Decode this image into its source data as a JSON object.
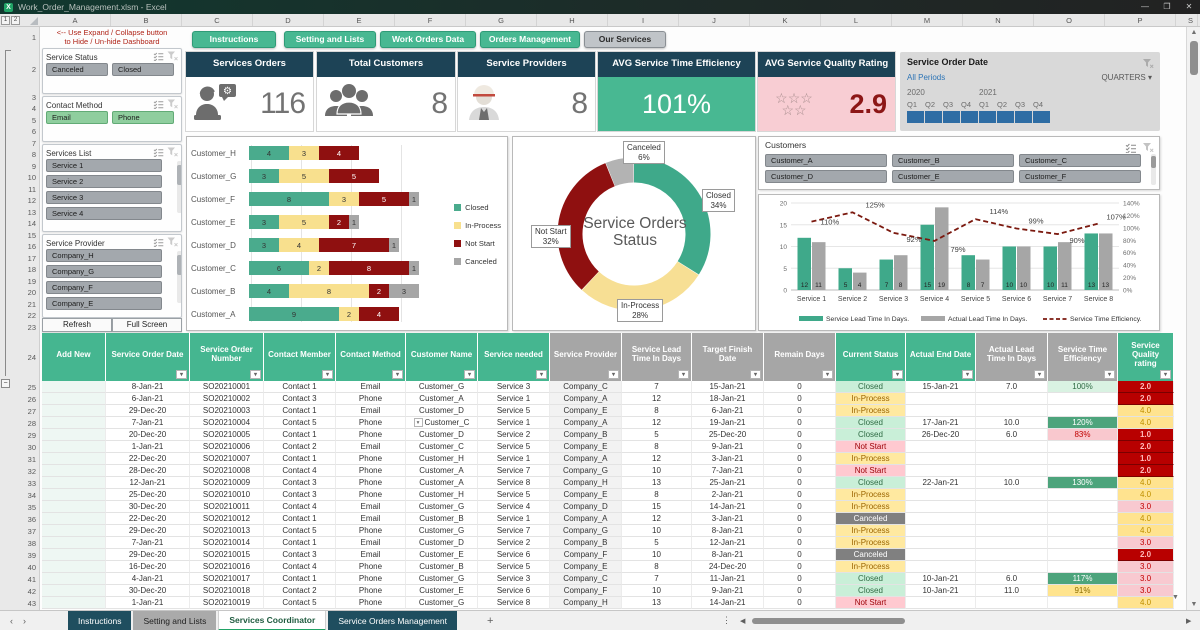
{
  "window": {
    "title": "Work_Order_Management.xlsm - Excel"
  },
  "grid": {
    "outline_levels": [
      "1",
      "2"
    ],
    "column_letters": [
      "A",
      "B",
      "C",
      "D",
      "E",
      "F",
      "G",
      "H",
      "I",
      "J",
      "K",
      "L",
      "M",
      "N",
      "O",
      "P",
      "S"
    ],
    "dashboard_row_numbers": [
      "1",
      "2",
      "3",
      "4",
      "5",
      "6",
      "7",
      "8",
      "9",
      "10",
      "11",
      "12",
      "13",
      "14",
      "15",
      "16",
      "17",
      "18",
      "19",
      "20",
      "21",
      "22",
      "23"
    ],
    "table_row_numbers": [
      "24",
      "25",
      "26",
      "27",
      "28",
      "29",
      "30",
      "31",
      "32",
      "33",
      "34",
      "35",
      "36",
      "37",
      "38",
      "39",
      "40",
      "41",
      "42",
      "43"
    ]
  },
  "sidebar": {
    "note_line1": "<-- Use Expand / Collapse button",
    "note_line2": "to Hide / Un-hide Dashboard",
    "slicers": [
      {
        "title": "Service Status",
        "columns": 2,
        "items": [
          {
            "label": "Canceled",
            "color": "gray"
          },
          {
            "label": "Closed",
            "color": "gray"
          }
        ]
      },
      {
        "title": "Contact Method",
        "columns": 2,
        "items": [
          {
            "label": "Email",
            "color": "green"
          },
          {
            "label": "Phone",
            "color": "green"
          }
        ]
      },
      {
        "title": "Services List",
        "columns": 1,
        "scrollbar": true,
        "items": [
          {
            "label": "Service 1",
            "color": "gray"
          },
          {
            "label": "Service 2",
            "color": "gray"
          },
          {
            "label": "Service 3",
            "color": "gray"
          },
          {
            "label": "Service 4",
            "color": "gray"
          }
        ]
      },
      {
        "title": "Service Provider",
        "columns": 1,
        "scrollbar": true,
        "items": [
          {
            "label": "Company_H",
            "color": "gray"
          },
          {
            "label": "Company_G",
            "color": "gray"
          },
          {
            "label": "Company_F",
            "color": "gray"
          },
          {
            "label": "Company_E",
            "color": "gray"
          }
        ]
      }
    ],
    "refresh_label": "Refresh",
    "fullscreen_label": "Full Screen"
  },
  "nav_buttons": [
    {
      "label": "Instructions",
      "style": "green"
    },
    {
      "label": "Setting and Lists",
      "style": "green"
    },
    {
      "label": "Work Orders Data",
      "style": "green"
    },
    {
      "label": "Orders Management",
      "style": "green"
    },
    {
      "label": "Our Services",
      "style": "gray"
    }
  ],
  "kpis": {
    "orders": {
      "title": "Services Orders",
      "value": "116"
    },
    "customers": {
      "title": "Total Customers",
      "value": "8"
    },
    "providers": {
      "title": "Service Providers",
      "value": "8"
    },
    "efficiency": {
      "title": "AVG Service Time Efficiency",
      "value": "101%"
    },
    "quality": {
      "title": "AVG Service Quality Rating",
      "value": "2.9",
      "star_count": 5,
      "star_glyph": "☆"
    }
  },
  "timeline": {
    "title": "Service Order Date",
    "selection": "All Periods",
    "granularity": "QUARTERS",
    "groups": [
      {
        "year": "2020",
        "quarters": [
          "Q1",
          "Q2",
          "Q3",
          "Q4"
        ]
      },
      {
        "year": "2021",
        "quarters": [
          "Q1",
          "Q2",
          "Q3",
          "Q4"
        ]
      }
    ]
  },
  "customers_slicer": {
    "title": "Customers",
    "items": [
      "Customer_A",
      "Customer_B",
      "Customer_C",
      "Customer_D",
      "Customer_E",
      "Customer_F"
    ]
  },
  "chart_data": [
    {
      "id": "orders-by-customer",
      "type": "bar",
      "orientation": "horizontal",
      "stacked": true,
      "categories": [
        "Customer_H",
        "Customer_G",
        "Customer_F",
        "Customer_E",
        "Customer_D",
        "Customer_C",
        "Customer_B",
        "Customer_A"
      ],
      "series": [
        {
          "name": "Closed",
          "color": "#4aab8d",
          "values": [
            4,
            3,
            8,
            3,
            3,
            6,
            4,
            9
          ]
        },
        {
          "name": "In-Process",
          "color": "#f8e08e",
          "values": [
            3,
            5,
            3,
            5,
            4,
            2,
            8,
            2
          ]
        },
        {
          "name": "Not Start",
          "color": "#8f1010",
          "values": [
            4,
            5,
            5,
            2,
            7,
            8,
            2,
            4
          ]
        },
        {
          "name": "Canceled",
          "color": "#a6a6a6",
          "values": [
            0,
            0,
            1,
            1,
            1,
            1,
            3,
            0
          ]
        }
      ],
      "xlim": [
        0,
        18
      ],
      "grid": true,
      "legend_position": "right"
    },
    {
      "id": "service-orders-status",
      "type": "pie",
      "donut": true,
      "title": "Service Orders Status",
      "labels": [
        "Closed",
        "In-Process",
        "Not Start",
        "Canceled"
      ],
      "values": [
        34,
        28,
        32,
        6
      ],
      "colors": [
        "#3fa98a",
        "#f7df94",
        "#8f1010",
        "#b3b3b3"
      ],
      "label_texts": [
        "Closed|34%",
        "In-Process|28%",
        "Not Start|32%",
        "Canceled|6%"
      ]
    },
    {
      "id": "service-lead-times",
      "type": "bar+line",
      "categories": [
        "Service 1",
        "Service 2",
        "Service 3",
        "Service 4",
        "Service 5",
        "Service 6",
        "Service 7",
        "Service 8"
      ],
      "series": [
        {
          "name": "Service Lead Time In Days.",
          "type": "bar",
          "color": "#3fa98a",
          "values": [
            12,
            5,
            7,
            15,
            8,
            10,
            10,
            13
          ]
        },
        {
          "name": "Actual Lead Time In Days.",
          "type": "bar",
          "color": "#a6a6a6",
          "values": [
            11,
            4,
            8,
            19,
            7,
            10,
            11,
            13
          ]
        },
        {
          "name": "Service Time Efficiency.",
          "type": "line",
          "style": "dashed",
          "color": "#7b190f",
          "values_pct": [
            110,
            125,
            92,
            79,
            114,
            99,
            90,
            107
          ]
        }
      ],
      "ylim_left": [
        0,
        20
      ],
      "yticks_left": [
        "0",
        "5",
        "10",
        "15",
        "20"
      ],
      "ylim_right_pct": [
        0,
        140
      ],
      "yticks_right": [
        "0%",
        "20%",
        "40%",
        "60%",
        "80%",
        "100%",
        "120%",
        "140%"
      ],
      "legend_position": "bottom"
    }
  ],
  "table": {
    "headers": [
      {
        "label": "Add New",
        "style": "green"
      },
      {
        "label": "Service Order Date",
        "style": "green"
      },
      {
        "label": "Service Order Number",
        "style": "green"
      },
      {
        "label": "Contact Member",
        "style": "green"
      },
      {
        "label": "Contact Method",
        "style": "green"
      },
      {
        "label": "Customer Name",
        "style": "green"
      },
      {
        "label": "Service needed",
        "style": "green"
      },
      {
        "label": "Service Provider",
        "style": "gray"
      },
      {
        "label": "Service Lead Time In Days",
        "style": "gray"
      },
      {
        "label": "Target Finish Date",
        "style": "gray"
      },
      {
        "label": "Remain Days",
        "style": "gray"
      },
      {
        "label": "Current Status",
        "style": "green"
      },
      {
        "label": "Actual End Date",
        "style": "green"
      },
      {
        "label": "Actual Lead Time In Days",
        "style": "gray"
      },
      {
        "label": "Service Time Efficiency",
        "style": "gray"
      },
      {
        "label": "Service Quality rating",
        "style": "green"
      }
    ],
    "rows": [
      {
        "date": "8-Jan-21",
        "number": "SO20210001",
        "contact": "Contact 1",
        "method": "Email",
        "customer": "Customer_G",
        "service": "Service 3",
        "provider": "Company_C",
        "lead": "7",
        "target": "15-Jan-21",
        "remain": "0",
        "status": "Closed",
        "end": "15-Jan-21",
        "actual_lead": "7.0",
        "efficiency": "100%",
        "eff_style": "light",
        "rating": "2.0"
      },
      {
        "date": "6-Jan-21",
        "number": "SO20210002",
        "contact": "Contact 3",
        "method": "Phone",
        "customer": "Customer_A",
        "service": "Service 1",
        "provider": "Company_A",
        "lead": "12",
        "target": "18-Jan-21",
        "remain": "0",
        "status": "In-Process",
        "end": "",
        "actual_lead": "",
        "efficiency": "",
        "rating": "2.0"
      },
      {
        "date": "29-Dec-20",
        "number": "SO20210003",
        "contact": "Contact 1",
        "method": "Email",
        "customer": "Customer_D",
        "service": "Service 5",
        "provider": "Company_E",
        "lead": "8",
        "target": "6-Jan-21",
        "remain": "0",
        "status": "In-Process",
        "end": "",
        "actual_lead": "",
        "efficiency": "",
        "rating": "4.0"
      },
      {
        "date": "7-Jan-21",
        "number": "SO20210004",
        "contact": "Contact 5",
        "method": "Phone",
        "customer": "Customer_C",
        "dropdown": true,
        "service": "Service 1",
        "provider": "Company_A",
        "lead": "12",
        "target": "19-Jan-21",
        "remain": "0",
        "status": "Closed",
        "end": "17-Jan-21",
        "actual_lead": "10.0",
        "efficiency": "120%",
        "eff_style": "solid",
        "rating": "4.0"
      },
      {
        "date": "20-Dec-20",
        "number": "SO20210005",
        "contact": "Contact 1",
        "method": "Phone",
        "customer": "Customer_D",
        "service": "Service 2",
        "provider": "Company_B",
        "lead": "5",
        "target": "25-Dec-20",
        "remain": "0",
        "status": "Closed",
        "end": "26-Dec-20",
        "actual_lead": "6.0",
        "efficiency": "83%",
        "eff_style": "pink",
        "rating": "1.0"
      },
      {
        "date": "1-Jan-21",
        "number": "SO20210006",
        "contact": "Contact 2",
        "method": "Email",
        "customer": "Customer_C",
        "service": "Service 5",
        "provider": "Company_E",
        "lead": "8",
        "target": "9-Jan-21",
        "remain": "0",
        "status": "Not Start",
        "end": "",
        "actual_lead": "",
        "efficiency": "",
        "rating": "2.0"
      },
      {
        "date": "22-Dec-20",
        "number": "SO20210007",
        "contact": "Contact 1",
        "method": "Phone",
        "customer": "Customer_H",
        "service": "Service 1",
        "provider": "Company_A",
        "lead": "12",
        "target": "3-Jan-21",
        "remain": "0",
        "status": "In-Process",
        "end": "",
        "actual_lead": "",
        "efficiency": "",
        "rating": "1.0"
      },
      {
        "date": "28-Dec-20",
        "number": "SO20210008",
        "contact": "Contact 4",
        "method": "Phone",
        "customer": "Customer_A",
        "service": "Service 7",
        "provider": "Company_G",
        "lead": "10",
        "target": "7-Jan-21",
        "remain": "0",
        "status": "Not Start",
        "end": "",
        "actual_lead": "",
        "efficiency": "",
        "rating": "2.0"
      },
      {
        "date": "12-Jan-21",
        "number": "SO20210009",
        "contact": "Contact 3",
        "method": "Phone",
        "customer": "Customer_A",
        "service": "Service 8",
        "provider": "Company_H",
        "lead": "13",
        "target": "25-Jan-21",
        "remain": "0",
        "status": "Closed",
        "end": "22-Jan-21",
        "actual_lead": "10.0",
        "efficiency": "130%",
        "eff_style": "solid",
        "rating": "4.0"
      },
      {
        "date": "25-Dec-20",
        "number": "SO20210010",
        "contact": "Contact 3",
        "method": "Phone",
        "customer": "Customer_H",
        "service": "Service 5",
        "provider": "Company_E",
        "lead": "8",
        "target": "2-Jan-21",
        "remain": "0",
        "status": "In-Process",
        "end": "",
        "actual_lead": "",
        "efficiency": "",
        "rating": "4.0"
      },
      {
        "date": "30-Dec-20",
        "number": "SO20210011",
        "contact": "Contact 4",
        "method": "Email",
        "customer": "Customer_G",
        "service": "Service 4",
        "provider": "Company_D",
        "lead": "15",
        "target": "14-Jan-21",
        "remain": "0",
        "status": "In-Process",
        "end": "",
        "actual_lead": "",
        "efficiency": "",
        "rating": "3.0"
      },
      {
        "date": "22-Dec-20",
        "number": "SO20210012",
        "contact": "Contact 1",
        "method": "Email",
        "customer": "Customer_B",
        "service": "Service 1",
        "provider": "Company_A",
        "lead": "12",
        "target": "3-Jan-21",
        "remain": "0",
        "status": "Canceled",
        "end": "",
        "actual_lead": "",
        "efficiency": "",
        "rating": "4.0"
      },
      {
        "date": "29-Dec-20",
        "number": "SO20210013",
        "contact": "Contact 5",
        "method": "Phone",
        "customer": "Customer_G",
        "service": "Service 7",
        "provider": "Company_G",
        "lead": "10",
        "target": "8-Jan-21",
        "remain": "0",
        "status": "In-Process",
        "end": "",
        "actual_lead": "",
        "efficiency": "",
        "rating": "4.0"
      },
      {
        "date": "7-Jan-21",
        "number": "SO20210014",
        "contact": "Contact 1",
        "method": "Email",
        "customer": "Customer_D",
        "service": "Service 2",
        "provider": "Company_B",
        "lead": "5",
        "target": "12-Jan-21",
        "remain": "0",
        "status": "In-Process",
        "end": "",
        "actual_lead": "",
        "efficiency": "",
        "rating": "3.0"
      },
      {
        "date": "29-Dec-20",
        "number": "SO20210015",
        "contact": "Contact 3",
        "method": "Email",
        "customer": "Customer_E",
        "service": "Service 6",
        "provider": "Company_F",
        "lead": "10",
        "target": "8-Jan-21",
        "remain": "0",
        "status": "Canceled",
        "end": "",
        "actual_lead": "",
        "efficiency": "",
        "rating": "2.0"
      },
      {
        "date": "16-Dec-20",
        "number": "SO20210016",
        "contact": "Contact 4",
        "method": "Phone",
        "customer": "Customer_B",
        "service": "Service 5",
        "provider": "Company_E",
        "lead": "8",
        "target": "24-Dec-20",
        "remain": "0",
        "status": "In-Process",
        "end": "",
        "actual_lead": "",
        "efficiency": "",
        "rating": "3.0"
      },
      {
        "date": "4-Jan-21",
        "number": "SO20210017",
        "contact": "Contact 1",
        "method": "Phone",
        "customer": "Customer_G",
        "service": "Service 3",
        "provider": "Company_C",
        "lead": "7",
        "target": "11-Jan-21",
        "remain": "0",
        "status": "Closed",
        "end": "10-Jan-21",
        "actual_lead": "6.0",
        "efficiency": "117%",
        "eff_style": "solid",
        "rating": "3.0"
      },
      {
        "date": "30-Dec-20",
        "number": "SO20210018",
        "contact": "Contact 2",
        "method": "Phone",
        "customer": "Customer_E",
        "service": "Service 6",
        "provider": "Company_F",
        "lead": "10",
        "target": "9-Jan-21",
        "remain": "0",
        "status": "Closed",
        "end": "10-Jan-21",
        "actual_lead": "11.0",
        "efficiency": "91%",
        "eff_style": "yellow",
        "rating": "3.0"
      },
      {
        "date": "1-Jan-21",
        "number": "SO20210019",
        "contact": "Contact 5",
        "method": "Phone",
        "customer": "Customer_G",
        "service": "Service 8",
        "provider": "Company_H",
        "lead": "13",
        "target": "14-Jan-21",
        "remain": "0",
        "status": "Not Start",
        "end": "",
        "actual_lead": "",
        "efficiency": "",
        "rating": "4.0"
      }
    ]
  },
  "sheetbar": {
    "tabs": [
      {
        "label": "Instructions",
        "style": "dark"
      },
      {
        "label": "Setting and Lists",
        "style": "gray"
      },
      {
        "label": "Services Coordinator",
        "style": "active"
      },
      {
        "label": "Service Orders Management",
        "style": "dark"
      }
    ]
  }
}
